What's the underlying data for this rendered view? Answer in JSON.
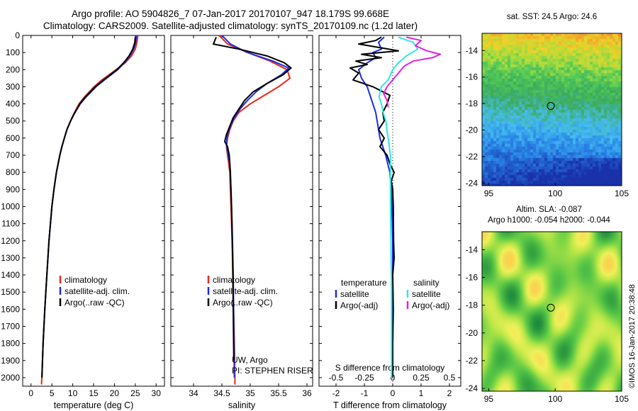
{
  "header": {
    "line1": "Argo profile: AO 5904826_7 07-Jan-2017 20170107_947 18.179S 99.668E",
    "line2": "Climatology: CARS2009. Satellite-adjusted climatology: synTS_20170109.nc (1.2d later)"
  },
  "colors": {
    "climatology": "#e8291b",
    "satellite": "#1a2ee0",
    "argo": "#000000",
    "salinity_satellite": "#2ee6e6",
    "salinity_argo": "#e020e0"
  },
  "chart_data": [
    {
      "type": "line",
      "id": "temperature",
      "xlabel": "temperature (deg C)",
      "xlim": [
        -2,
        32
      ],
      "xticks": [
        0,
        5,
        10,
        15,
        20,
        25,
        30
      ],
      "xticklabels": [
        "0",
        "5",
        "10",
        "15",
        "20",
        "25",
        "30"
      ],
      "ylim": [
        0,
        2050
      ],
      "yticks": [
        0,
        100,
        200,
        300,
        400,
        500,
        600,
        700,
        800,
        900,
        1000,
        1100,
        1200,
        1300,
        1400,
        1500,
        1600,
        1700,
        1800,
        1900,
        2000
      ],
      "yticklabels": [
        "0",
        "100",
        "200",
        "300",
        "400",
        "500",
        "600",
        "700",
        "800",
        "900",
        "1000",
        "1100",
        "1200",
        "1300",
        "1400",
        "1500",
        "1600",
        "1700",
        "1800",
        "1900",
        "2000"
      ],
      "legend": [
        "climatology",
        "satellite-adj. clim.",
        "Argo(..raw -QC)"
      ],
      "series": [
        {
          "name": "climatology",
          "depth": [
            0,
            40,
            80,
            120,
            160,
            200,
            260,
            300,
            360,
            400,
            460,
            500,
            550,
            600,
            650,
            700,
            800,
            900,
            1000,
            1200,
            1400,
            1600,
            1800,
            2000,
            2040
          ],
          "values": [
            25.6,
            25.4,
            25.0,
            24.1,
            22.6,
            20.4,
            17.0,
            15.1,
            12.8,
            11.5,
            10.2,
            9.5,
            8.6,
            8.0,
            7.4,
            6.9,
            6.1,
            5.5,
            5.0,
            4.3,
            3.8,
            3.3,
            2.9,
            2.6,
            2.5
          ]
        },
        {
          "name": "satellite",
          "depth": [
            0,
            40,
            80,
            120,
            160,
            200,
            260,
            300,
            360,
            400,
            460,
            500,
            550,
            600,
            650,
            700,
            800,
            900,
            1000,
            1200,
            1400,
            1600,
            1800,
            2000
          ],
          "values": [
            25.3,
            25.1,
            24.6,
            23.7,
            22.4,
            20.8,
            17.6,
            15.6,
            13.2,
            11.8,
            10.3,
            9.5,
            8.6,
            8.0,
            7.4,
            6.9,
            6.1,
            5.5,
            5.0,
            4.3,
            3.8,
            3.3,
            2.9,
            2.6
          ]
        },
        {
          "name": "argo",
          "depth": [
            10,
            40,
            80,
            120,
            160,
            200,
            260,
            300,
            360,
            400,
            460,
            500,
            550,
            600,
            650,
            700,
            800,
            900,
            1000,
            1200,
            1400,
            1600,
            1800,
            2000
          ],
          "values": [
            25.0,
            24.9,
            24.4,
            23.5,
            22.2,
            20.6,
            17.4,
            15.4,
            13.0,
            11.7,
            10.3,
            9.5,
            8.6,
            8.0,
            7.4,
            6.9,
            6.1,
            5.5,
            5.0,
            4.3,
            3.8,
            3.3,
            2.9,
            2.6
          ]
        }
      ]
    },
    {
      "type": "line",
      "id": "salinity",
      "xlabel": "salinity",
      "xlim": [
        33.6,
        36.1
      ],
      "xticks": [
        34,
        34.5,
        35,
        35.5,
        36
      ],
      "xticklabels": [
        "34",
        "34.5",
        "35",
        "35.5",
        "36"
      ],
      "ylim": [
        0,
        2050
      ],
      "legend": [
        "climatology",
        "satellite-adj. clim.",
        "Argo(..raw -QC)"
      ],
      "annotation": [
        "UW, Argo",
        "PI: STEPHEN RISER"
      ],
      "series": [
        {
          "name": "climatology",
          "depth": [
            0,
            50,
            100,
            150,
            200,
            250,
            300,
            350,
            400,
            450,
            500,
            550,
            600,
            650,
            700,
            800,
            1000,
            1200,
            1500,
            1800,
            2000,
            2040
          ],
          "values": [
            34.45,
            34.6,
            34.95,
            35.35,
            35.65,
            35.7,
            35.5,
            35.25,
            35.0,
            34.8,
            34.7,
            34.64,
            34.6,
            34.58,
            34.6,
            34.64,
            34.66,
            34.68,
            34.7,
            34.72,
            34.73,
            34.73
          ]
        },
        {
          "name": "satellite",
          "depth": [
            0,
            50,
            100,
            150,
            190,
            230,
            280,
            330,
            380,
            430,
            480,
            530,
            580,
            630,
            680,
            750,
            900,
            1100,
            1400,
            1700,
            2000
          ],
          "values": [
            34.5,
            34.65,
            34.95,
            35.4,
            35.68,
            35.55,
            35.3,
            35.1,
            34.95,
            34.82,
            34.72,
            34.65,
            34.6,
            34.58,
            34.6,
            34.64,
            34.66,
            34.68,
            34.7,
            34.71,
            34.72
          ]
        },
        {
          "name": "argo",
          "depth": [
            10,
            50,
            80,
            120,
            160,
            190,
            230,
            280,
            330,
            380,
            430,
            480,
            530,
            580,
            620,
            650,
            700,
            800,
            1000,
            1300,
            1600,
            1900
          ],
          "values": [
            34.4,
            34.35,
            34.8,
            35.3,
            35.6,
            35.72,
            35.58,
            35.3,
            35.05,
            34.9,
            34.8,
            34.7,
            34.64,
            34.58,
            34.55,
            34.6,
            34.63,
            34.65,
            34.67,
            34.69,
            34.7,
            34.71
          ]
        }
      ]
    },
    {
      "type": "line",
      "id": "difference",
      "xlabel": "T difference from climatology",
      "xlabel2": "S difference from climatology",
      "xlim": [
        -2.6,
        2.4
      ],
      "xticks": [
        -2,
        -1,
        0,
        1,
        2
      ],
      "xticklabels": [
        "-2",
        "-1",
        "0",
        "1",
        "2"
      ],
      "sticks": [
        -0.5,
        -0.25,
        0,
        0.25,
        0.5
      ],
      "sticklabels": [
        "-0.5",
        "-0.25",
        "0",
        "0.25",
        "0.5"
      ],
      "ylim": [
        0,
        2050
      ],
      "legend_temperature": [
        "temperature",
        "satellite",
        "Argo(-adj)"
      ],
      "legend_salinity": [
        "salinity",
        "satellite",
        "Argo(-adj)"
      ],
      "series": [
        {
          "name": "T satellite",
          "depth": [
            10,
            40,
            80,
            100,
            130,
            160,
            200,
            250,
            300,
            350,
            400,
            450,
            500,
            550,
            600,
            650,
            700,
            800,
            900,
            1000,
            1200,
            1500,
            1800,
            2000
          ],
          "values": [
            -0.3,
            -0.5,
            -0.4,
            -0.7,
            -0.6,
            -0.9,
            -1.2,
            -1.1,
            -0.9,
            -0.8,
            -0.7,
            -0.6,
            -0.55,
            -0.5,
            -0.45,
            -0.35,
            -0.25,
            -0.1,
            -0.05,
            -0.03,
            0,
            0,
            0,
            0
          ]
        },
        {
          "name": "T argo",
          "depth": [
            10,
            30,
            50,
            70,
            90,
            110,
            130,
            150,
            170,
            190,
            220,
            260,
            300,
            350,
            400,
            450,
            500,
            550,
            600,
            650,
            700,
            750,
            800,
            850,
            900,
            1000,
            1200,
            1300,
            1400,
            1600,
            1800,
            2000
          ],
          "values": [
            -0.4,
            -0.6,
            -1.2,
            -0.5,
            0.2,
            -1.1,
            -0.4,
            -1.3,
            -0.9,
            -1.5,
            -1.2,
            -1.4,
            -0.7,
            -0.1,
            -0.2,
            -0.35,
            -0.3,
            -0.5,
            -0.3,
            -0.45,
            -0.2,
            -0.1,
            0.05,
            -0.05,
            0,
            0.02,
            0.03,
            0.05,
            0,
            0.02,
            0,
            0
          ]
        },
        {
          "name": "S satellite",
          "depth": [
            10,
            40,
            80,
            120,
            160,
            200,
            260,
            300,
            360,
            400,
            460,
            500,
            560,
            600,
            700,
            800,
            1000,
            1500,
            2000
          ],
          "values": [
            0.05,
            0.18,
            0.22,
            0.12,
            0.05,
            0.0,
            -0.04,
            -0.1,
            -0.12,
            -0.1,
            -0.08,
            -0.06,
            -0.05,
            -0.04,
            -0.02,
            -0.02,
            -0.02,
            -0.01,
            -0.01
          ]
        },
        {
          "name": "S argo",
          "depth": [
            10,
            30,
            60,
            90,
            110,
            130,
            150,
            180,
            220,
            260,
            300,
            340,
            380,
            420
          ],
          "values": [
            0.12,
            0.25,
            0.2,
            0.3,
            0.42,
            0.35,
            0.18,
            0.1,
            0.05,
            0.0,
            -0.05,
            -0.08,
            -0.05,
            -0.04
          ]
        }
      ]
    },
    {
      "type": "heatmap",
      "id": "sst_map",
      "title": "sat. SST: 24.5  Argo: 24.6",
      "xlim": [
        94.5,
        105
      ],
      "ylim": [
        -24.2,
        -12.7
      ],
      "xticks": [
        95,
        100,
        105
      ],
      "xticklabels": [
        "95",
        "100",
        "105"
      ],
      "yticks": [
        -24,
        -22,
        -20,
        -18,
        -16,
        -14
      ],
      "yticklabels": [
        "-24",
        "-22",
        "-20",
        "-18",
        "-16",
        "-14"
      ],
      "marker": [
        99.67,
        -18.18
      ]
    },
    {
      "type": "heatmap",
      "id": "sla_map",
      "title": "Altim. SLA: -0.087",
      "subtitle": "Argo h1000: -0.054  h2000: -0.044",
      "xlim": [
        94.5,
        105
      ],
      "ylim": [
        -24.2,
        -12.7
      ],
      "xticks": [
        95,
        100,
        105
      ],
      "xticklabels": [
        "95",
        "100",
        "105"
      ],
      "yticks": [
        -24,
        -22,
        -20,
        -18,
        -16,
        -14
      ],
      "yticklabels": [
        "-24",
        "-22",
        "-20",
        "-18",
        "-16",
        "-14"
      ],
      "marker": [
        99.67,
        -18.18
      ]
    }
  ],
  "stamp": "©IMOS 16-Jan-2017 20:38:48"
}
